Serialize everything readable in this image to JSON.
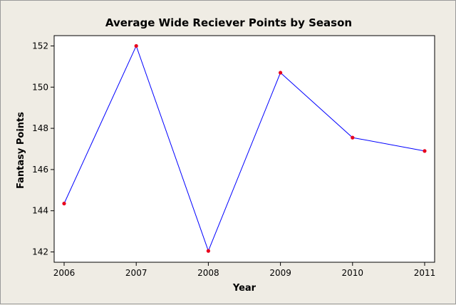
{
  "chart_data": {
    "type": "line",
    "title": "Average Wide Reciever Points by Season",
    "xlabel": "Year",
    "ylabel": "Fantasy Points",
    "x": [
      "2006",
      "2007",
      "2008",
      "2009",
      "2010",
      "2011"
    ],
    "series": [
      {
        "values": [
          144.35,
          152.0,
          142.05,
          150.7,
          147.55,
          146.9
        ],
        "line_color": "#0000ff",
        "marker_color": "#e8001c"
      }
    ],
    "yticks": [
      "142",
      "144",
      "146",
      "148",
      "150",
      "152"
    ],
    "ylim": [
      141.5,
      152.5
    ],
    "grid": false,
    "legend": "none",
    "colors": {
      "page_background": "#efece4",
      "plot_background": "#ffffff"
    }
  }
}
